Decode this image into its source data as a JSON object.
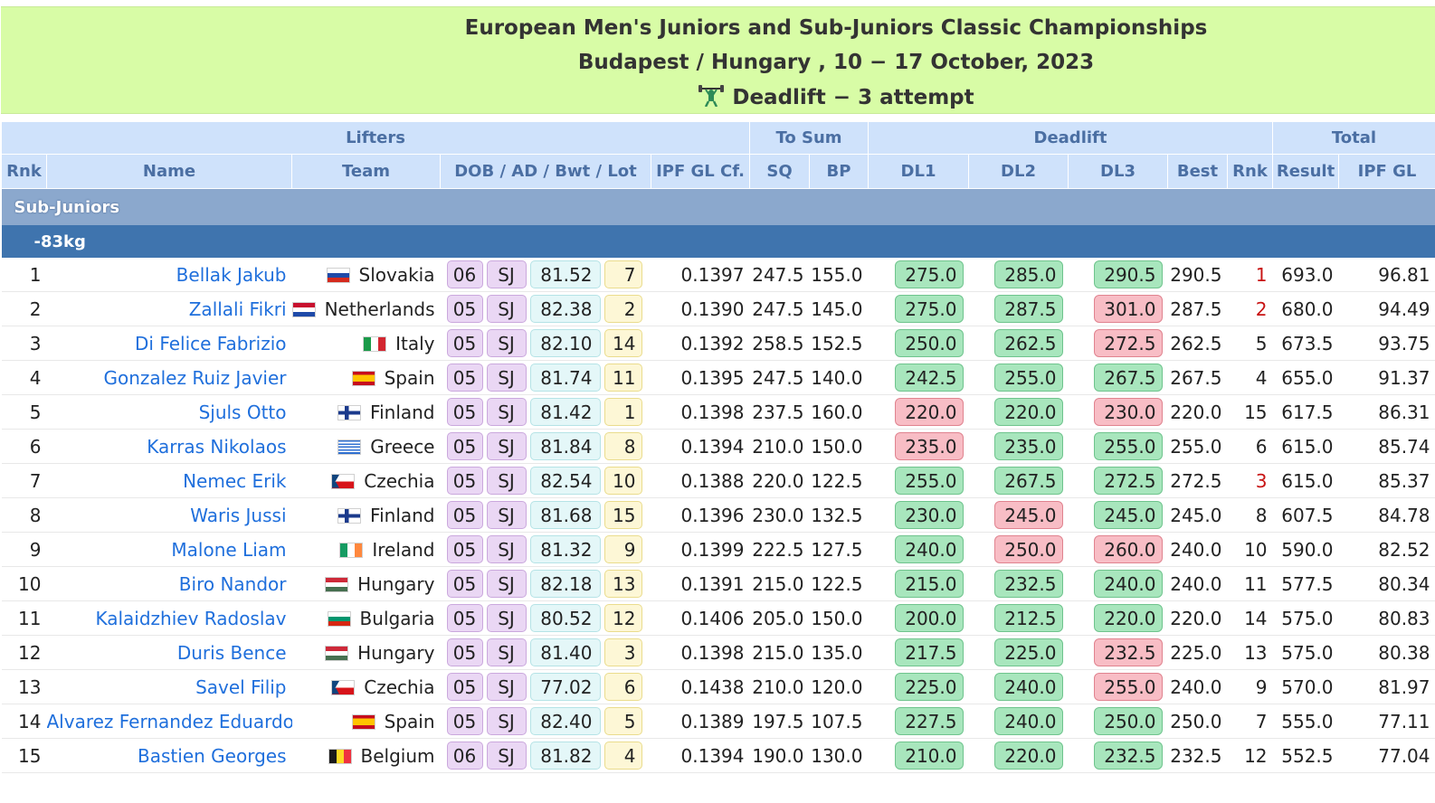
{
  "header": {
    "title": "European Men's Juniors and Sub-Juniors Classic Championships",
    "location": "Budapest / Hungary , 10 − 17 October, 2023",
    "lift_status": "Deadlift − 3 attempt",
    "lift_icon": "weightlifter-icon"
  },
  "table": {
    "group_headers": {
      "lifters": "Lifters",
      "to_sum": "To Sum",
      "deadlift": "Deadlift",
      "total": "Total"
    },
    "columns": {
      "rnk": "Rnk",
      "name": "Name",
      "team": "Team",
      "attrs": "DOB / AD / Bwt / Lot",
      "coef": "IPF GL Cf.",
      "sq": "SQ",
      "bp": "BP",
      "dl1": "DL1",
      "dl2": "DL2",
      "dl3": "DL3",
      "best": "Best",
      "dl_rnk": "Rnk",
      "result": "Result",
      "ipf_gl": "IPF GL"
    },
    "section": "Sub-Juniors",
    "weight_class": "-83kg",
    "rows": [
      {
        "rnk": "1",
        "name": "Bellak Jakub",
        "team": "Slovakia",
        "flag": "slovakia",
        "dob": "06",
        "ad": "SJ",
        "bwt": "81.52",
        "lot": "7",
        "coef": "0.1397",
        "sq": "247.5",
        "bp": "155.0",
        "dl1": "275.0",
        "dl1_ok": true,
        "dl2": "285.0",
        "dl2_ok": true,
        "dl3": "290.5",
        "dl3_ok": true,
        "best": "290.5",
        "dl_rnk": "1",
        "dl_rnk_highlight": true,
        "result": "693.0",
        "ipf_gl": "96.81"
      },
      {
        "rnk": "2",
        "name": "Zallali Fikri",
        "team": "Netherlands",
        "flag": "netherlands",
        "dob": "05",
        "ad": "SJ",
        "bwt": "82.38",
        "lot": "2",
        "coef": "0.1390",
        "sq": "247.5",
        "bp": "145.0",
        "dl1": "275.0",
        "dl1_ok": true,
        "dl2": "287.5",
        "dl2_ok": true,
        "dl3": "301.0",
        "dl3_ok": false,
        "best": "287.5",
        "dl_rnk": "2",
        "dl_rnk_highlight": true,
        "result": "680.0",
        "ipf_gl": "94.49"
      },
      {
        "rnk": "3",
        "name": "Di Felice Fabrizio",
        "team": "Italy",
        "flag": "italy",
        "dob": "05",
        "ad": "SJ",
        "bwt": "82.10",
        "lot": "14",
        "coef": "0.1392",
        "sq": "258.5",
        "bp": "152.5",
        "dl1": "250.0",
        "dl1_ok": true,
        "dl2": "262.5",
        "dl2_ok": true,
        "dl3": "272.5",
        "dl3_ok": false,
        "best": "262.5",
        "dl_rnk": "5",
        "dl_rnk_highlight": false,
        "result": "673.5",
        "ipf_gl": "93.75"
      },
      {
        "rnk": "4",
        "name": "Gonzalez Ruiz Javier",
        "team": "Spain",
        "flag": "spain",
        "dob": "05",
        "ad": "SJ",
        "bwt": "81.74",
        "lot": "11",
        "coef": "0.1395",
        "sq": "247.5",
        "bp": "140.0",
        "dl1": "242.5",
        "dl1_ok": true,
        "dl2": "255.0",
        "dl2_ok": true,
        "dl3": "267.5",
        "dl3_ok": true,
        "best": "267.5",
        "dl_rnk": "4",
        "dl_rnk_highlight": false,
        "result": "655.0",
        "ipf_gl": "91.37"
      },
      {
        "rnk": "5",
        "name": "Sjuls Otto",
        "team": "Finland",
        "flag": "finland",
        "dob": "05",
        "ad": "SJ",
        "bwt": "81.42",
        "lot": "1",
        "coef": "0.1398",
        "sq": "237.5",
        "bp": "160.0",
        "dl1": "220.0",
        "dl1_ok": false,
        "dl2": "220.0",
        "dl2_ok": true,
        "dl3": "230.0",
        "dl3_ok": false,
        "best": "220.0",
        "dl_rnk": "15",
        "dl_rnk_highlight": false,
        "result": "617.5",
        "ipf_gl": "86.31"
      },
      {
        "rnk": "6",
        "name": "Karras Nikolaos",
        "team": "Greece",
        "flag": "greece",
        "dob": "05",
        "ad": "SJ",
        "bwt": "81.84",
        "lot": "8",
        "coef": "0.1394",
        "sq": "210.0",
        "bp": "150.0",
        "dl1": "235.0",
        "dl1_ok": false,
        "dl2": "235.0",
        "dl2_ok": true,
        "dl3": "255.0",
        "dl3_ok": true,
        "best": "255.0",
        "dl_rnk": "6",
        "dl_rnk_highlight": false,
        "result": "615.0",
        "ipf_gl": "85.74"
      },
      {
        "rnk": "7",
        "name": "Nemec Erik",
        "team": "Czechia",
        "flag": "czechia",
        "dob": "05",
        "ad": "SJ",
        "bwt": "82.54",
        "lot": "10",
        "coef": "0.1388",
        "sq": "220.0",
        "bp": "122.5",
        "dl1": "255.0",
        "dl1_ok": true,
        "dl2": "267.5",
        "dl2_ok": true,
        "dl3": "272.5",
        "dl3_ok": true,
        "best": "272.5",
        "dl_rnk": "3",
        "dl_rnk_highlight": true,
        "result": "615.0",
        "ipf_gl": "85.37"
      },
      {
        "rnk": "8",
        "name": "Waris Jussi",
        "team": "Finland",
        "flag": "finland",
        "dob": "05",
        "ad": "SJ",
        "bwt": "81.68",
        "lot": "15",
        "coef": "0.1396",
        "sq": "230.0",
        "bp": "132.5",
        "dl1": "230.0",
        "dl1_ok": true,
        "dl2": "245.0",
        "dl2_ok": false,
        "dl3": "245.0",
        "dl3_ok": true,
        "best": "245.0",
        "dl_rnk": "8",
        "dl_rnk_highlight": false,
        "result": "607.5",
        "ipf_gl": "84.78"
      },
      {
        "rnk": "9",
        "name": "Malone Liam",
        "team": "Ireland",
        "flag": "ireland",
        "dob": "05",
        "ad": "SJ",
        "bwt": "81.32",
        "lot": "9",
        "coef": "0.1399",
        "sq": "222.5",
        "bp": "127.5",
        "dl1": "240.0",
        "dl1_ok": true,
        "dl2": "250.0",
        "dl2_ok": false,
        "dl3": "260.0",
        "dl3_ok": false,
        "best": "240.0",
        "dl_rnk": "10",
        "dl_rnk_highlight": false,
        "result": "590.0",
        "ipf_gl": "82.52"
      },
      {
        "rnk": "10",
        "name": "Biro Nandor",
        "team": "Hungary",
        "flag": "hungary",
        "dob": "05",
        "ad": "SJ",
        "bwt": "82.18",
        "lot": "13",
        "coef": "0.1391",
        "sq": "215.0",
        "bp": "122.5",
        "dl1": "215.0",
        "dl1_ok": true,
        "dl2": "232.5",
        "dl2_ok": true,
        "dl3": "240.0",
        "dl3_ok": true,
        "best": "240.0",
        "dl_rnk": "11",
        "dl_rnk_highlight": false,
        "result": "577.5",
        "ipf_gl": "80.34"
      },
      {
        "rnk": "11",
        "name": "Kalaidzhiev Radoslav",
        "team": "Bulgaria",
        "flag": "bulgaria",
        "dob": "05",
        "ad": "SJ",
        "bwt": "80.52",
        "lot": "12",
        "coef": "0.1406",
        "sq": "205.0",
        "bp": "150.0",
        "dl1": "200.0",
        "dl1_ok": true,
        "dl2": "212.5",
        "dl2_ok": true,
        "dl3": "220.0",
        "dl3_ok": true,
        "best": "220.0",
        "dl_rnk": "14",
        "dl_rnk_highlight": false,
        "result": "575.0",
        "ipf_gl": "80.83"
      },
      {
        "rnk": "12",
        "name": "Duris Bence",
        "team": "Hungary",
        "flag": "hungary",
        "dob": "05",
        "ad": "SJ",
        "bwt": "81.40",
        "lot": "3",
        "coef": "0.1398",
        "sq": "215.0",
        "bp": "135.0",
        "dl1": "217.5",
        "dl1_ok": true,
        "dl2": "225.0",
        "dl2_ok": true,
        "dl3": "232.5",
        "dl3_ok": false,
        "best": "225.0",
        "dl_rnk": "13",
        "dl_rnk_highlight": false,
        "result": "575.0",
        "ipf_gl": "80.38"
      },
      {
        "rnk": "13",
        "name": "Savel Filip",
        "team": "Czechia",
        "flag": "czechia",
        "dob": "05",
        "ad": "SJ",
        "bwt": "77.02",
        "lot": "6",
        "coef": "0.1438",
        "sq": "210.0",
        "bp": "120.0",
        "dl1": "225.0",
        "dl1_ok": true,
        "dl2": "240.0",
        "dl2_ok": true,
        "dl3": "255.0",
        "dl3_ok": false,
        "best": "240.0",
        "dl_rnk": "9",
        "dl_rnk_highlight": false,
        "result": "570.0",
        "ipf_gl": "81.97"
      },
      {
        "rnk": "14",
        "name": "Alvarez Fernandez Eduardo",
        "team": "Spain",
        "flag": "spain",
        "dob": "05",
        "ad": "SJ",
        "bwt": "82.40",
        "lot": "5",
        "coef": "0.1389",
        "sq": "197.5",
        "bp": "107.5",
        "dl1": "227.5",
        "dl1_ok": true,
        "dl2": "240.0",
        "dl2_ok": true,
        "dl3": "250.0",
        "dl3_ok": true,
        "best": "250.0",
        "dl_rnk": "7",
        "dl_rnk_highlight": false,
        "result": "555.0",
        "ipf_gl": "77.11"
      },
      {
        "rnk": "15",
        "name": "Bastien Georges",
        "team": "Belgium",
        "flag": "belgium",
        "dob": "06",
        "ad": "SJ",
        "bwt": "81.82",
        "lot": "4",
        "coef": "0.1394",
        "sq": "190.0",
        "bp": "130.0",
        "dl1": "210.0",
        "dl1_ok": true,
        "dl2": "220.0",
        "dl2_ok": true,
        "dl3": "232.5",
        "dl3_ok": true,
        "best": "232.5",
        "dl_rnk": "12",
        "dl_rnk_highlight": false,
        "result": "552.5",
        "ipf_gl": "77.04"
      }
    ]
  }
}
